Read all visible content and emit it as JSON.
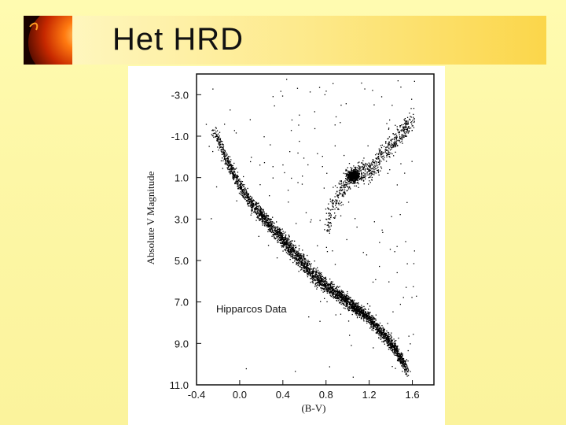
{
  "slide": {
    "title": "Het HRD"
  },
  "chart_data": {
    "type": "scatter",
    "xlabel": "(B-V)",
    "ylabel": "Absolute V Magnitude",
    "annotation": "Hipparcos Data",
    "xlim": [
      -0.4,
      1.8
    ],
    "ylim": [
      -4.0,
      11.0
    ],
    "y_inverted": true,
    "x_ticks": [
      -0.4,
      0.0,
      0.4,
      0.8,
      1.2,
      1.6
    ],
    "x_tick_labels": [
      "-0.4",
      "0.0",
      "0.4",
      "0.8",
      "1.2",
      "1.6"
    ],
    "y_ticks": [
      -3.0,
      -1.0,
      1.0,
      3.0,
      5.0,
      7.0,
      9.0,
      11.0
    ],
    "y_tick_labels": [
      "-3.0",
      "-1.0",
      "1.0",
      "3.0",
      "5.0",
      "7.0",
      "9.0",
      "11.0"
    ],
    "series": [
      {
        "x": [
          -0.25,
          -0.2,
          -0.15,
          -0.1,
          -0.05,
          0.0,
          0.05,
          0.1,
          0.15,
          0.2,
          0.25,
          0.3,
          0.35,
          0.4,
          0.45,
          0.5,
          0.55,
          0.6,
          0.65,
          0.7,
          0.75,
          0.8,
          0.85,
          0.9,
          0.95,
          1.0,
          1.05,
          1.1,
          1.15,
          1.2,
          1.25,
          1.3,
          1.35,
          1.4,
          1.45,
          1.5,
          1.55
        ],
        "y": [
          -1.3,
          -0.8,
          -0.2,
          0.4,
          0.9,
          1.4,
          1.8,
          2.2,
          2.5,
          2.8,
          3.1,
          3.4,
          3.7,
          4.0,
          4.3,
          4.6,
          4.9,
          5.2,
          5.5,
          5.8,
          6.0,
          6.2,
          6.4,
          6.6,
          6.8,
          7.0,
          7.2,
          7.4,
          7.6,
          7.8,
          8.1,
          8.4,
          8.7,
          9.0,
          9.4,
          9.8,
          10.3
        ]
      },
      {
        "x": [
          0.8,
          0.85,
          0.9,
          0.95,
          1.0,
          1.05,
          1.1,
          1.15,
          1.2,
          1.25,
          1.3,
          1.4,
          1.5,
          1.6
        ],
        "y": [
          3.4,
          2.6,
          2.0,
          1.5,
          1.1,
          0.9,
          0.8,
          0.7,
          0.6,
          0.4,
          0.0,
          -0.6,
          -1.2,
          -1.8
        ]
      }
    ]
  }
}
